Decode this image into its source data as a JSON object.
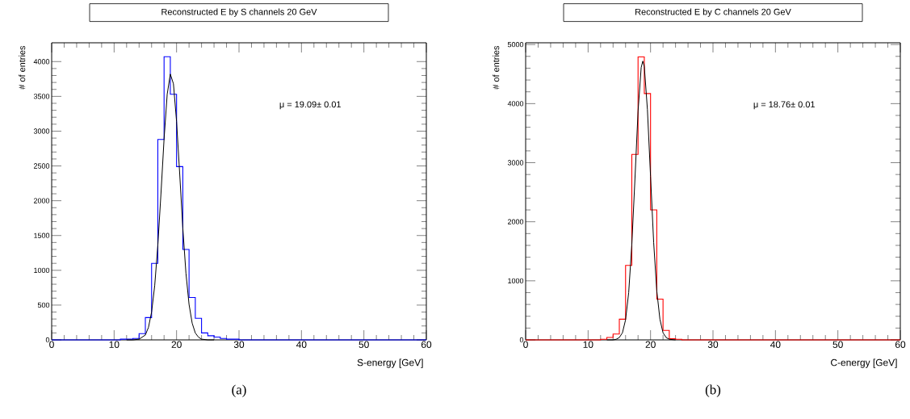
{
  "chart_data": [
    {
      "type": "histogram",
      "title": "Reconstructed E by S channels 20 GeV",
      "xlabel": "S-energy [GeV]",
      "ylabel": "# of entries",
      "bins": [
        0,
        1,
        2,
        3,
        4,
        5,
        6,
        7,
        8,
        9,
        10,
        11,
        12,
        13,
        14,
        15,
        16,
        17,
        18,
        19,
        20,
        21,
        22,
        23,
        24,
        25,
        26,
        27,
        28,
        29,
        30,
        31,
        32,
        33,
        34,
        35,
        36,
        37,
        38,
        39,
        40,
        41,
        42,
        43,
        44,
        45,
        46,
        47,
        48,
        49,
        50,
        51,
        52,
        53,
        54,
        55,
        56,
        57,
        58,
        59,
        60
      ],
      "series": [
        {
          "type": "histogram",
          "color": "#0000ff",
          "values": [
            0,
            0,
            0,
            0,
            0,
            0,
            0,
            0,
            0,
            0,
            0,
            10,
            10,
            20,
            90,
            320,
            1100,
            2880,
            4070,
            3530,
            2490,
            1300,
            610,
            310,
            100,
            60,
            40,
            20,
            10,
            10,
            0,
            0,
            0,
            0,
            0,
            0,
            0,
            0,
            0,
            0,
            0,
            0,
            0,
            0,
            0,
            0,
            0,
            0,
            0,
            0,
            0,
            0,
            0,
            0,
            0,
            0,
            0,
            0,
            0,
            0
          ]
        },
        {
          "type": "line",
          "color": "#000000",
          "x": [
            12,
            13,
            14,
            15,
            15.5,
            16,
            16.5,
            17,
            17.5,
            18,
            18.5,
            19,
            19.5,
            20,
            20.5,
            21,
            21.5,
            22,
            22.5,
            23,
            23.5,
            24,
            25,
            26
          ],
          "values": [
            0,
            0,
            10,
            70,
            180,
            400,
            780,
            1360,
            2100,
            2890,
            3530,
            3820,
            3680,
            3140,
            2390,
            1610,
            960,
            510,
            240,
            100,
            40,
            10,
            0,
            0
          ]
        }
      ],
      "xlim": [
        0,
        60
      ],
      "xticks": [
        0,
        10,
        20,
        30,
        40,
        50,
        60
      ],
      "ylim": [
        0,
        4270
      ],
      "yticks": [
        0,
        500,
        1000,
        1500,
        2000,
        2500,
        3000,
        3500,
        4000
      ],
      "grid": false,
      "annotations": [
        "μ = 19.09± 0.01",
        "(a)"
      ]
    },
    {
      "type": "histogram",
      "title": "Reconstructed E by C channels 20 GeV",
      "xlabel": "C-energy [GeV]",
      "ylabel": "# of entries",
      "bins": [
        0,
        1,
        2,
        3,
        4,
        5,
        6,
        7,
        8,
        9,
        10,
        11,
        12,
        13,
        14,
        15,
        16,
        17,
        18,
        19,
        20,
        21,
        22,
        23,
        24,
        25,
        26,
        27,
        28,
        29,
        30,
        31,
        32,
        33,
        34,
        35,
        36,
        37,
        38,
        39,
        40,
        41,
        42,
        43,
        44,
        45,
        46,
        47,
        48,
        49,
        50,
        51,
        52,
        53,
        54,
        55,
        56,
        57,
        58,
        59,
        60
      ],
      "series": [
        {
          "type": "histogram",
          "color": "#ff0000",
          "values": [
            0,
            0,
            0,
            0,
            0,
            0,
            0,
            0,
            0,
            0,
            0,
            0,
            10,
            40,
            100,
            350,
            1260,
            3140,
            4790,
            4170,
            2200,
            690,
            160,
            20,
            10,
            0,
            0,
            0,
            0,
            0,
            0,
            0,
            0,
            0,
            0,
            0,
            0,
            0,
            0,
            0,
            0,
            0,
            0,
            0,
            0,
            0,
            0,
            0,
            0,
            0,
            0,
            0,
            0,
            0,
            0,
            0,
            0,
            0,
            0,
            0
          ]
        },
        {
          "type": "line",
          "color": "#000000",
          "x": [
            13,
            14,
            14.5,
            15,
            15.5,
            16,
            16.5,
            17,
            17.5,
            18,
            18.5,
            18.76,
            19,
            19.5,
            20,
            20.5,
            21,
            21.5,
            22,
            22.5,
            23,
            24
          ],
          "values": [
            0,
            0,
            10,
            40,
            120,
            340,
            800,
            1610,
            2720,
            3870,
            4610,
            4720,
            4630,
            3900,
            2770,
            1650,
            830,
            350,
            120,
            40,
            10,
            0
          ]
        }
      ],
      "xlim": [
        0,
        60
      ],
      "xticks": [
        0,
        10,
        20,
        30,
        40,
        50,
        60
      ],
      "ylim": [
        0,
        5030
      ],
      "yticks": [
        0,
        1000,
        2000,
        3000,
        4000,
        5000
      ],
      "grid": false,
      "annotations": [
        "μ = 18.76± 0.01",
        "(b)"
      ]
    }
  ]
}
